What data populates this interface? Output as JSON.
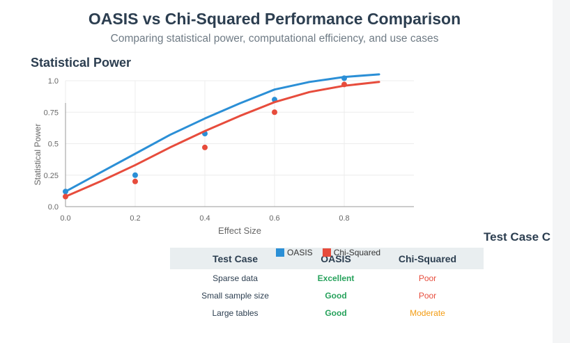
{
  "header": {
    "title": "OASIS vs Chi-Squared Performance Comparison",
    "subtitle": "Comparing statistical power, computational efficiency, and use cases"
  },
  "sections": {
    "power_title": "Statistical Power",
    "test_case_title": "Test Case C"
  },
  "chart_data": {
    "type": "line",
    "xlabel": "Effect Size",
    "ylabel": "Statistical Power",
    "xlim": [
      0,
      1.0
    ],
    "ylim": [
      0,
      1.0
    ],
    "xticks": [
      "0.0",
      "0.2",
      "0.4",
      "0.6",
      "0.8"
    ],
    "yticks": [
      "0.0",
      "0.25",
      "0.5",
      "0.75",
      "1.0"
    ],
    "grid": true,
    "legend_position": "bottom",
    "series": [
      {
        "name": "OASIS",
        "color": "#2b8fd6",
        "curve_x": [
          0,
          0.1,
          0.2,
          0.3,
          0.4,
          0.5,
          0.6,
          0.7,
          0.8,
          0.9
        ],
        "curve_y": [
          0.12,
          0.27,
          0.42,
          0.57,
          0.7,
          0.82,
          0.93,
          0.99,
          1.03,
          1.05
        ],
        "points_x": [
          0,
          0.2,
          0.4,
          0.6,
          0.8
        ],
        "points_y": [
          0.12,
          0.25,
          0.58,
          0.85,
          1.02
        ]
      },
      {
        "name": "Chi-Squared",
        "color": "#e74c3c",
        "curve_x": [
          0,
          0.1,
          0.2,
          0.3,
          0.4,
          0.5,
          0.6,
          0.7,
          0.8,
          0.9
        ],
        "curve_y": [
          0.08,
          0.2,
          0.33,
          0.47,
          0.6,
          0.72,
          0.83,
          0.91,
          0.96,
          0.99
        ],
        "points_x": [
          0,
          0.2,
          0.4,
          0.6,
          0.8
        ],
        "points_y": [
          0.08,
          0.2,
          0.47,
          0.75,
          0.97
        ]
      }
    ]
  },
  "table": {
    "headers": [
      "Test Case",
      "OASIS",
      "Chi-Squared"
    ],
    "rows": [
      {
        "test_case": "Sparse data",
        "oasis": "Excellent",
        "oasis_rating": "excellent",
        "chi": "Poor",
        "chi_rating": "poor"
      },
      {
        "test_case": "Small sample size",
        "oasis": "Good",
        "oasis_rating": "good",
        "chi": "Poor",
        "chi_rating": "poor"
      },
      {
        "test_case": "Large tables",
        "oasis": "Good",
        "oasis_rating": "good",
        "chi": "Moderate",
        "chi_rating": "moderate"
      }
    ]
  },
  "colors": {
    "good": "#27a25c",
    "poor": "#e74c3c",
    "moderate": "#f39c12",
    "heading": "#2c3e50"
  }
}
